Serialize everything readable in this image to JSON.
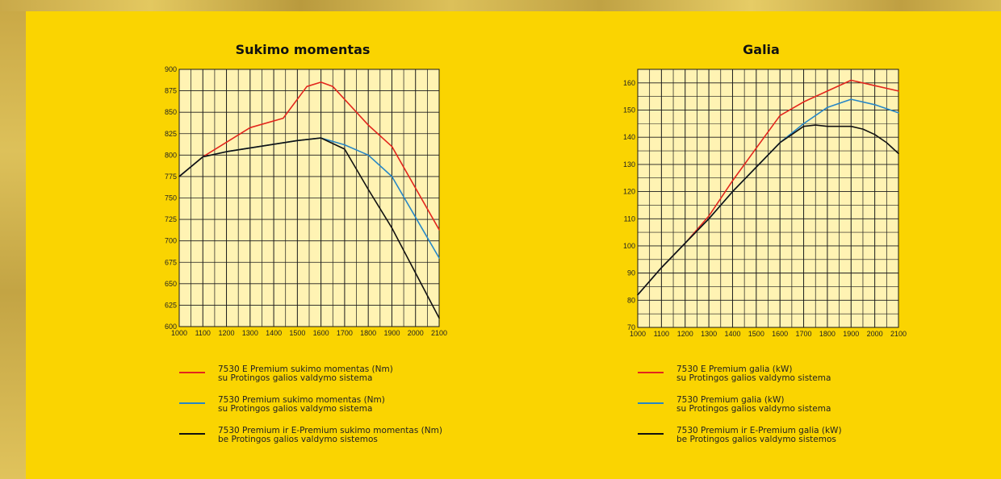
{
  "colors": {
    "panel": "#fad401",
    "plot_bg": "#fff3b3",
    "grid": "#1a1a1a",
    "red": "#e2261d",
    "blue": "#2787c6",
    "black": "#111111"
  },
  "chart_data": [
    {
      "type": "line",
      "title": "Sukimo momentas",
      "xlabel": "",
      "ylabel": "",
      "xlim": [
        1000,
        2100
      ],
      "ylim": [
        600,
        900
      ],
      "xticks": [
        "1000",
        "1100",
        "1200",
        "1300",
        "1400",
        "1500",
        "1600",
        "1700",
        "1800",
        "1900",
        "2000",
        "2100"
      ],
      "yticks": [
        "600",
        "625",
        "650",
        "675",
        "700",
        "725",
        "750",
        "775",
        "800",
        "825",
        "850",
        "875",
        "900"
      ],
      "grid": true,
      "series": [
        {
          "color": "#e2261d",
          "x": [
            1000,
            1100,
            1200,
            1300,
            1440,
            1540,
            1600,
            1650,
            1800,
            1900,
            2100
          ],
          "y": [
            775,
            798,
            815,
            832,
            843,
            880,
            885,
            880,
            835,
            810,
            713
          ]
        },
        {
          "color": "#2787c6",
          "x": [
            1000,
            1100,
            1200,
            1500,
            1600,
            1700,
            1800,
            1900,
            2100
          ],
          "y": [
            775,
            798,
            804,
            817,
            820,
            812,
            800,
            775,
            680
          ]
        },
        {
          "color": "#111111",
          "x": [
            1000,
            1100,
            1200,
            1500,
            1600,
            1700,
            1800,
            1900,
            2100
          ],
          "y": [
            775,
            798,
            804,
            817,
            820,
            807,
            760,
            715,
            610
          ]
        }
      ],
      "legend": [
        {
          "line1": "7530 E Premium sukimo momentas (Nm)",
          "line2": "su Protingos galios valdymo sistema",
          "color": "#e2261d"
        },
        {
          "line1": "7530 Premium sukimo momentas (Nm)",
          "line2": "su Protingos galios valdymo sistema",
          "color": "#2787c6"
        },
        {
          "line1": "7530 Premium ir  E-Premium sukimo momentas (Nm)",
          "line2": "be Protingos galios valdymo sistemos",
          "color": "#111111"
        }
      ]
    },
    {
      "type": "line",
      "title": "Galia",
      "xlabel": "",
      "ylabel": "",
      "xlim": [
        1000,
        2100
      ],
      "ylim": [
        70,
        165
      ],
      "xticks": [
        "1000",
        "1100",
        "1200",
        "1300",
        "1400",
        "1500",
        "1600",
        "1700",
        "1800",
        "1900",
        "2000",
        "2100"
      ],
      "yticks": [
        "70",
        "80",
        "90",
        "100",
        "110",
        "120",
        "130",
        "140",
        "150",
        "160"
      ],
      "grid": true,
      "series": [
        {
          "color": "#e2261d",
          "x": [
            1000,
            1100,
            1200,
            1300,
            1400,
            1500,
            1600,
            1700,
            1800,
            1900,
            2000,
            2100
          ],
          "y": [
            82,
            92,
            101,
            111,
            124,
            136,
            148,
            153,
            157,
            161,
            159,
            157
          ]
        },
        {
          "color": "#2787c6",
          "x": [
            1000,
            1100,
            1200,
            1300,
            1400,
            1500,
            1600,
            1700,
            1800,
            1900,
            2000,
            2100
          ],
          "y": [
            82,
            92,
            101,
            110,
            120,
            129,
            138,
            145,
            151,
            154,
            152,
            149
          ]
        },
        {
          "color": "#111111",
          "x": [
            1000,
            1100,
            1200,
            1300,
            1400,
            1500,
            1600,
            1650,
            1700,
            1750,
            1800,
            1900,
            1950,
            2000,
            2050,
            2100
          ],
          "y": [
            82,
            92,
            101,
            110,
            120,
            129,
            138,
            141,
            144,
            144.5,
            144,
            144,
            143,
            141,
            138,
            134
          ]
        }
      ],
      "legend": [
        {
          "line1": "7530 E Premium galia (kW)",
          "line2": "su Protingos galios valdymo sistema",
          "color": "#e2261d"
        },
        {
          "line1": "7530 Premium galia (kW)",
          "line2": "su Protingos galios valdymo sistema",
          "color": "#2787c6"
        },
        {
          "line1": "7530 Premium ir E-Premium galia (kW)",
          "line2": "be Protingos galios valdymo sistemos",
          "color": "#111111"
        }
      ]
    }
  ]
}
